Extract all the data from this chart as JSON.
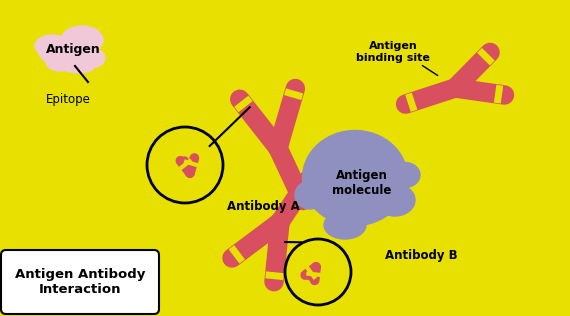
{
  "bg_color": "#E8E000",
  "antibody_color": "#D85060",
  "antigen_molecule_color": "#9090C0",
  "antigen_blob_color": "#F0C8D8",
  "title_box_color": "#FFFFFF",
  "title_text": "Antigen Antibody\nInteraction",
  "label_antigen": "Antigen",
  "label_epitope": "Epitope",
  "label_antibody_a": "Antibody A",
  "label_antibody_b": "Antibody B",
  "label_antigen_molecule": "Antigen\nmolecule",
  "label_binding_site": "Antigen\nbinding site",
  "figsize": [
    5.7,
    3.16
  ],
  "dpi": 100
}
